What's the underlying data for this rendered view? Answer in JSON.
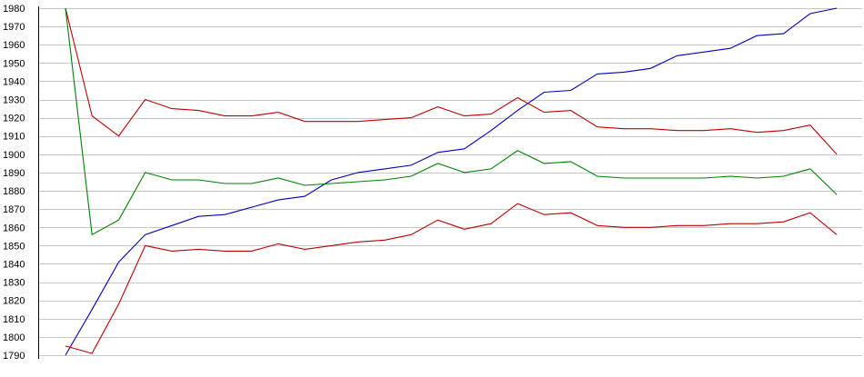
{
  "chart_data": {
    "type": "line",
    "title": "",
    "xlabel": "",
    "ylabel": "",
    "ylim": [
      1790,
      1980
    ],
    "yticks": [
      1790,
      1800,
      1810,
      1820,
      1830,
      1840,
      1850,
      1860,
      1870,
      1880,
      1890,
      1900,
      1910,
      1920,
      1930,
      1940,
      1950,
      1960,
      1970,
      1980
    ],
    "x": [
      1,
      2,
      3,
      4,
      5,
      6,
      7,
      8,
      9,
      10,
      11,
      12,
      13,
      14,
      15,
      16,
      17,
      18,
      19,
      20,
      21,
      22,
      23,
      24,
      25,
      26,
      27,
      28,
      29,
      30
    ],
    "grid": true,
    "legend": "none",
    "series": [
      {
        "color": "#0000c0",
        "values": [
          1790,
          1815,
          1841,
          1856,
          1861,
          1866,
          1867,
          1871,
          1875,
          1877,
          1886,
          1890,
          1892,
          1894,
          1901,
          1903,
          1913,
          1924,
          1934,
          1935,
          1944,
          1945,
          1947,
          1954,
          1956,
          1958,
          1965,
          1966,
          1977,
          1980
        ]
      },
      {
        "color": "#c00000",
        "values": [
          1980,
          1921,
          1910,
          1930,
          1925,
          1924,
          1921,
          1921,
          1923,
          1918,
          1918,
          1918,
          1919,
          1920,
          1926,
          1921,
          1922,
          1931,
          1923,
          1924,
          1915,
          1914,
          1914,
          1913,
          1913,
          1914,
          1912,
          1913,
          1916,
          1900
        ]
      },
      {
        "color": "#008000",
        "values": [
          1980,
          1856,
          1864,
          1890,
          1886,
          1886,
          1884,
          1884,
          1887,
          1883,
          1884,
          1885,
          1886,
          1888,
          1895,
          1890,
          1892,
          1902,
          1895,
          1896,
          1888,
          1887,
          1887,
          1887,
          1887,
          1888,
          1887,
          1888,
          1892,
          1878
        ]
      },
      {
        "color": "#c00000",
        "values": [
          1795,
          1791,
          1818,
          1850,
          1847,
          1848,
          1847,
          1847,
          1851,
          1848,
          1850,
          1852,
          1853,
          1856,
          1864,
          1859,
          1862,
          1873,
          1867,
          1868,
          1861,
          1860,
          1860,
          1861,
          1861,
          1862,
          1862,
          1863,
          1868,
          1856
        ]
      }
    ]
  }
}
